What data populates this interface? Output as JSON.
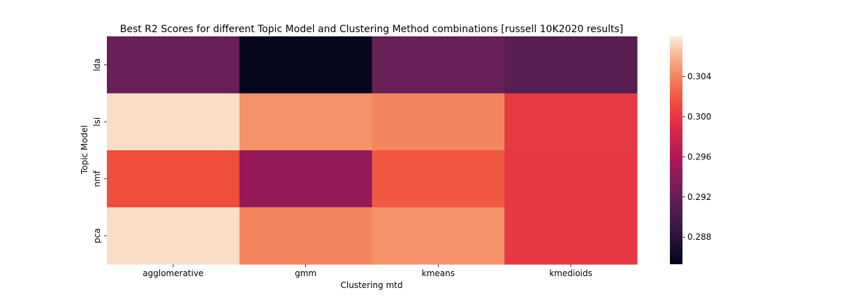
{
  "chart_data": {
    "type": "heatmap",
    "title": "Best R2 Scores for different Topic Model and Clustering Method combinations [russell 10K2020 results]",
    "xlabel": "Clustering mtd",
    "ylabel": "Topic Model",
    "x_categories": [
      "agglomerative",
      "gmm",
      "kmeans",
      "kmedioids"
    ],
    "y_categories": [
      "lda",
      "lsi",
      "nmf",
      "pca"
    ],
    "values": [
      [
        0.292,
        0.2855,
        0.292,
        0.291
      ],
      [
        0.3075,
        0.3045,
        0.304,
        0.3002
      ],
      [
        0.3015,
        0.2945,
        0.302,
        0.3
      ],
      [
        0.3075,
        0.304,
        0.3045,
        0.3
      ]
    ],
    "colorbar": {
      "range": [
        0.2853,
        0.308
      ],
      "ticks": [
        0.288,
        0.292,
        0.296,
        0.3,
        0.304
      ],
      "tick_labels": [
        "0.288",
        "0.292",
        "0.296",
        "0.300",
        "0.304"
      ],
      "colormap": "rocket"
    },
    "grid": false,
    "legend": "colorbar-right"
  }
}
